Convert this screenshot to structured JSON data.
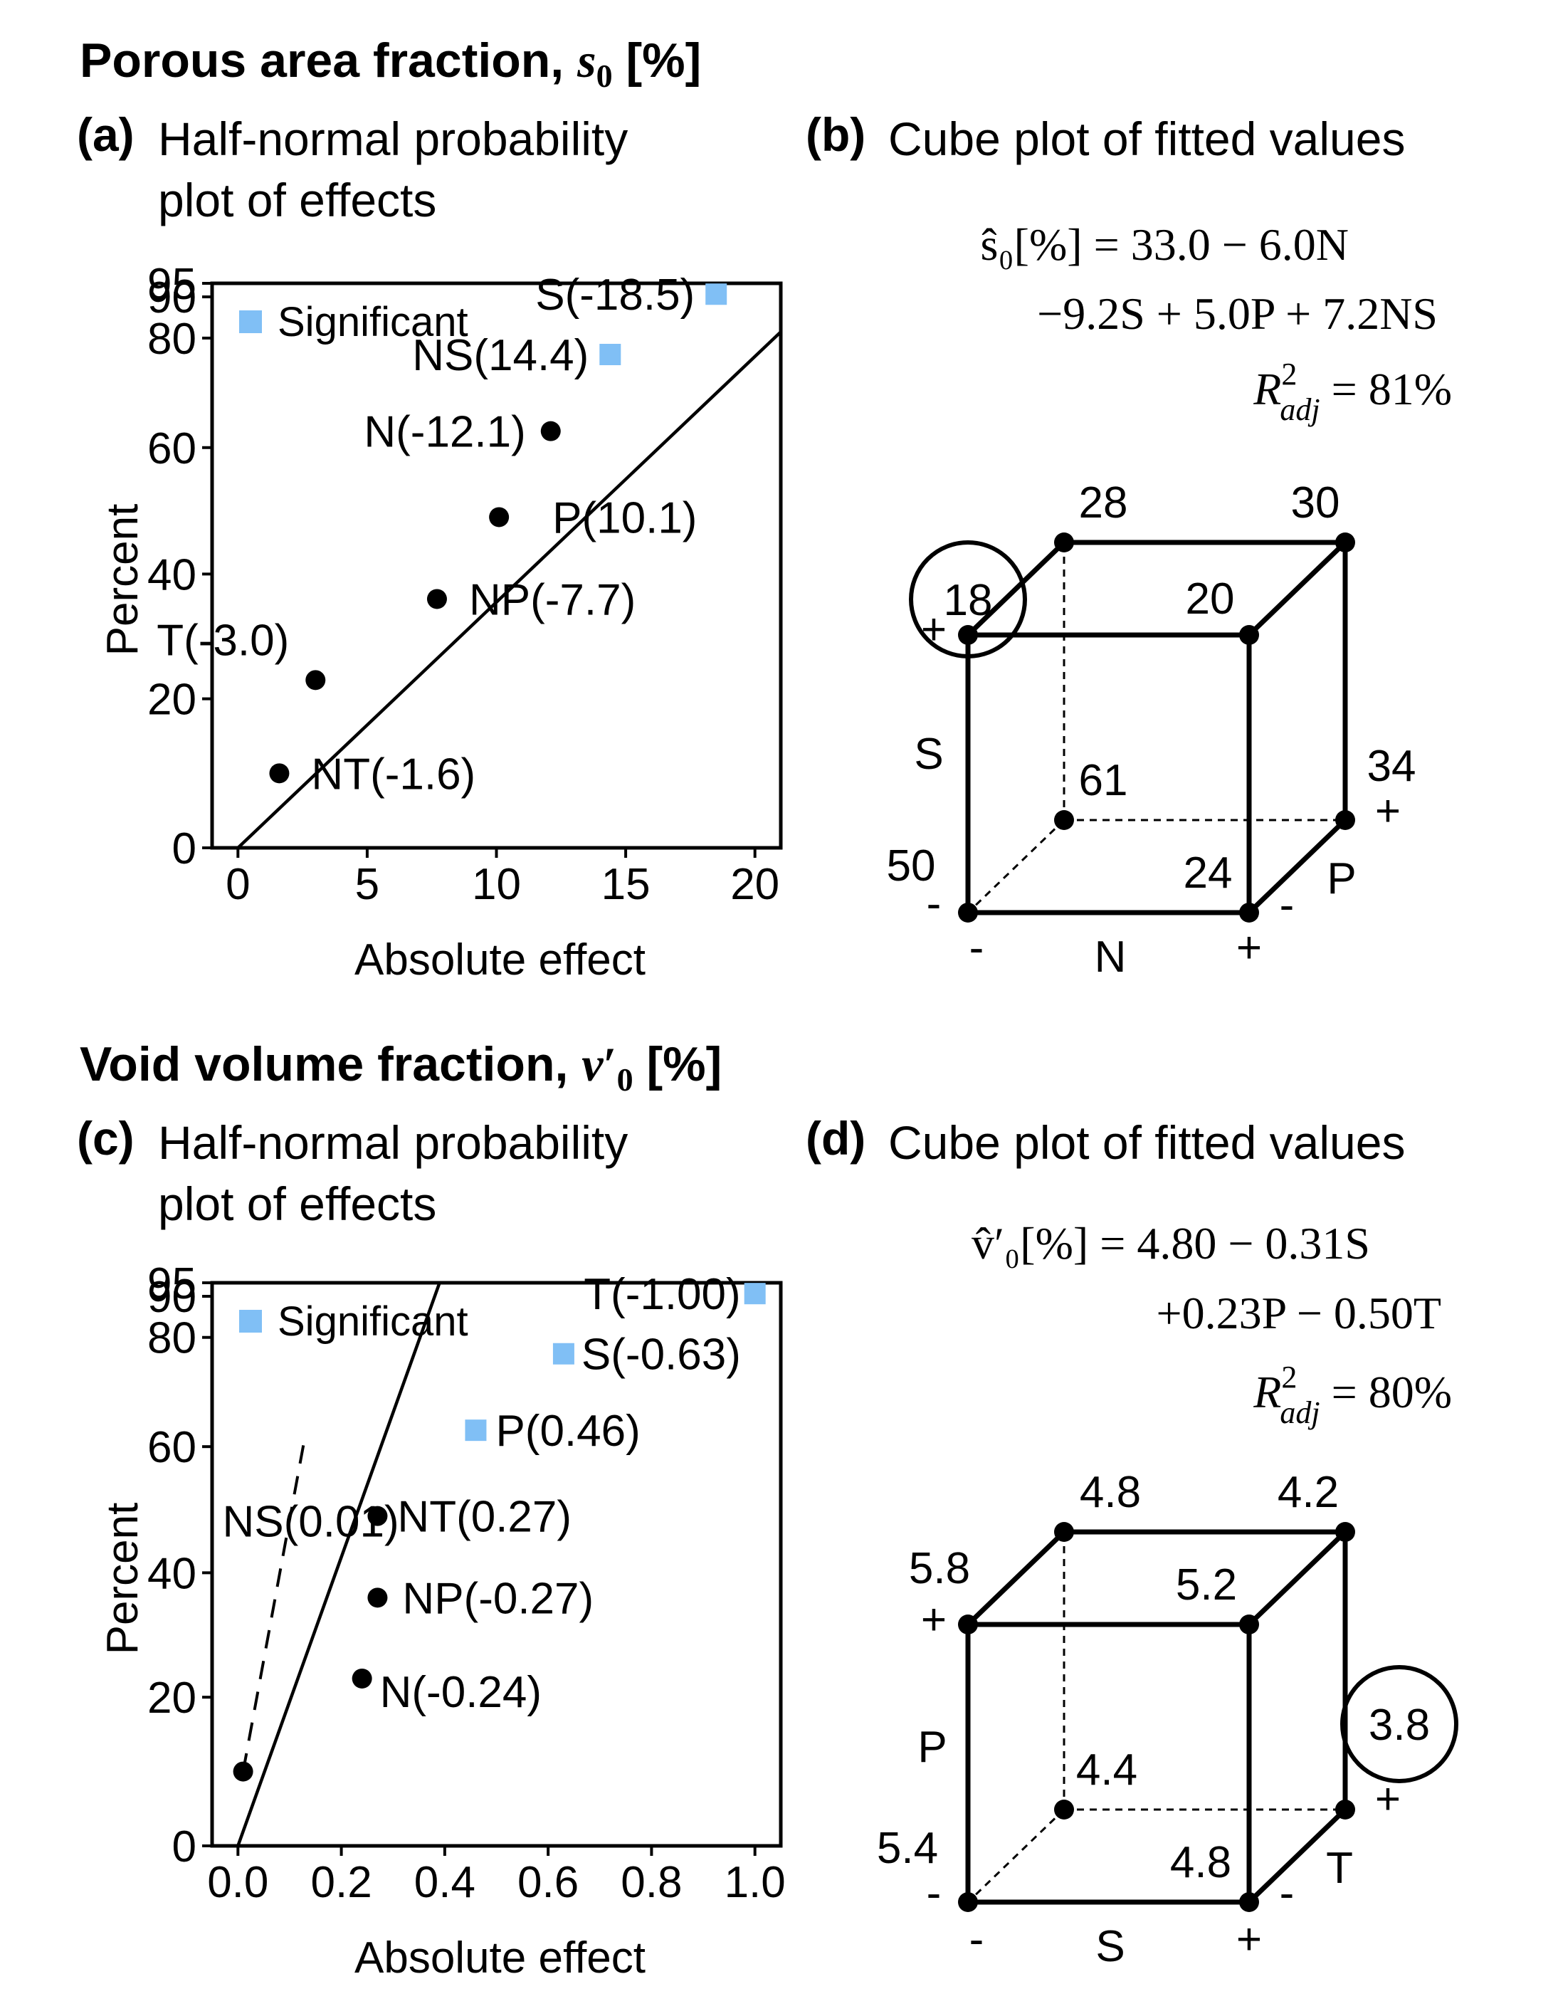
{
  "sections": [
    {
      "title": "Porous area fraction, ",
      "symbol": "s",
      "sub": "0",
      "prime": "",
      "unit": " [%]"
    },
    {
      "title": "Void volume fraction, ",
      "symbol": "v",
      "sub": "0",
      "prime": "′",
      "unit": " [%]"
    }
  ],
  "panels": {
    "a": {
      "letter": "(a)",
      "title_line1": "Half-normal probability",
      "title_line2": "plot of effects"
    },
    "b": {
      "letter": "(b)",
      "title": "Cube plot of fitted values",
      "eq_line1": "ŝ₀[%] = 33.0 − 6.0N",
      "eq_line2": "−9.2S + 5.0P + 7.2NS",
      "r2_label": "R",
      "r2_sup": "2",
      "r2_sub": "adj",
      "r2_value": " = 81%"
    },
    "c": {
      "letter": "(c)",
      "title_line1": "Half-normal probability",
      "title_line2": "plot of effects"
    },
    "d": {
      "letter": "(d)",
      "title": "Cube plot of fitted values",
      "eq_line1": "v̂′₀[%] = 4.80 − 0.31S",
      "eq_line2": "+0.23P − 0.50T",
      "r2_label": "R",
      "r2_sup": "2",
      "r2_sub": "adj",
      "r2_value": " = 80%"
    }
  },
  "colors": {
    "significant": "#80bff5",
    "point": "#000000",
    "line": "#000000"
  },
  "chart_data": [
    {
      "type": "scatter",
      "panel": "a",
      "xlabel": "Absolute effect",
      "ylabel": "Percent",
      "xlim": [
        -1,
        21
      ],
      "xticks": [
        0,
        5,
        10,
        15,
        20
      ],
      "xtick_labels": [
        "0",
        "5",
        "10",
        "15",
        "20"
      ],
      "yticks": [
        0,
        20,
        40,
        60,
        80,
        90,
        95
      ],
      "ytick_labels": [
        "0",
        "20",
        "40",
        "60",
        "80",
        "90",
        "95"
      ],
      "legend": "Significant",
      "points": [
        {
          "label": "S(-18.5)",
          "x": 18.5,
          "percent": 91,
          "significant": true
        },
        {
          "label": "NS(14.4)",
          "x": 14.4,
          "percent": 77,
          "significant": true
        },
        {
          "label": "N(-12.1)",
          "x": 12.1,
          "percent": 63,
          "significant": false
        },
        {
          "label": "P(10.1)",
          "x": 10.1,
          "percent": 49,
          "significant": false
        },
        {
          "label": "NP(-7.7)",
          "x": 7.7,
          "percent": 36,
          "significant": false
        },
        {
          "label": "T(-3.0)",
          "x": 3.0,
          "percent": 23,
          "significant": false
        },
        {
          "label": "NT(-1.6)",
          "x": 1.6,
          "percent": 10,
          "significant": false
        }
      ],
      "fit_line": {
        "x": [
          0,
          21
        ],
        "percent": [
          0,
          81.5
        ]
      }
    },
    {
      "type": "scatter",
      "panel": "c",
      "xlabel": "Absolute effect",
      "ylabel": "Percent",
      "xlim": [
        -0.05,
        1.05
      ],
      "xticks": [
        0,
        0.2,
        0.4,
        0.6,
        0.8,
        1.0
      ],
      "xtick_labels": [
        "0.0",
        "0.2",
        "0.4",
        "0.6",
        "0.8",
        "1.0"
      ],
      "yticks": [
        0,
        20,
        40,
        60,
        80,
        90,
        95
      ],
      "ytick_labels": [
        "0",
        "20",
        "40",
        "60",
        "80",
        "90",
        "95"
      ],
      "legend": "Significant",
      "points": [
        {
          "label": "T(-1.00)",
          "x": 1.0,
          "percent": 91,
          "significant": true
        },
        {
          "label": "S(-0.63)",
          "x": 0.63,
          "percent": 77,
          "significant": true
        },
        {
          "label": "P(0.46)",
          "x": 0.46,
          "percent": 63,
          "significant": true
        },
        {
          "label": "NT(0.27)",
          "x": 0.27,
          "percent": 49,
          "significant": false
        },
        {
          "label": "NP(-0.27)",
          "x": 0.27,
          "percent": 36,
          "significant": false
        },
        {
          "label": "N(-0.24)",
          "x": 0.24,
          "percent": 23,
          "significant": false
        },
        {
          "label": "NS(0.01)",
          "x": 0.01,
          "percent": 10,
          "significant": false
        }
      ],
      "fit_line": {
        "x": [
          0,
          0.39
        ],
        "percent": [
          0,
          95
        ]
      },
      "dashed_line": {
        "x": [
          0.01,
          0.13
        ],
        "percent": [
          10,
          62
        ]
      }
    },
    {
      "type": "cube",
      "panel": "b",
      "axes": {
        "x": "N",
        "y": "S",
        "z": "P"
      },
      "vertices": [
        {
          "x": "-",
          "y": "-",
          "z": "-",
          "value": "50"
        },
        {
          "x": "+",
          "y": "-",
          "z": "-",
          "value": "24"
        },
        {
          "x": "-",
          "y": "+",
          "z": "-",
          "value": "18",
          "circled": true
        },
        {
          "x": "+",
          "y": "+",
          "z": "-",
          "value": "20"
        },
        {
          "x": "-",
          "y": "-",
          "z": "+",
          "value": "61"
        },
        {
          "x": "+",
          "y": "-",
          "z": "+",
          "value": "34"
        },
        {
          "x": "-",
          "y": "+",
          "z": "+",
          "value": "28"
        },
        {
          "x": "+",
          "y": "+",
          "z": "+",
          "value": "30"
        }
      ],
      "signs": {
        "plus": "+",
        "minus": "-"
      }
    },
    {
      "type": "cube",
      "panel": "d",
      "axes": {
        "x": "S",
        "y": "P",
        "z": "T"
      },
      "vertices": [
        {
          "x": "-",
          "y": "-",
          "z": "-",
          "value": "5.4"
        },
        {
          "x": "+",
          "y": "-",
          "z": "-",
          "value": "4.8"
        },
        {
          "x": "-",
          "y": "+",
          "z": "-",
          "value": "5.8"
        },
        {
          "x": "+",
          "y": "+",
          "z": "-",
          "value": "5.2"
        },
        {
          "x": "-",
          "y": "-",
          "z": "+",
          "value": "4.4"
        },
        {
          "x": "+",
          "y": "-",
          "z": "+",
          "value": "3.8",
          "circled": true
        },
        {
          "x": "-",
          "y": "+",
          "z": "+",
          "value": "4.8"
        },
        {
          "x": "+",
          "y": "+",
          "z": "+",
          "value": "4.2"
        }
      ],
      "signs": {
        "plus": "+",
        "minus": "-"
      }
    }
  ]
}
